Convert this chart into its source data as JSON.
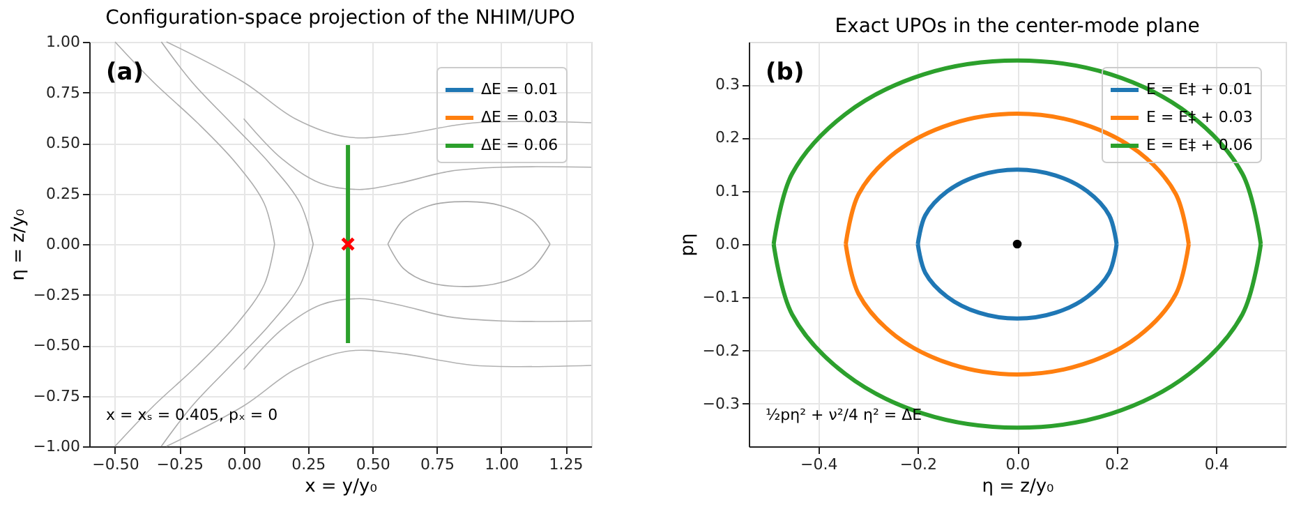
{
  "chart_data": [
    {
      "type": "line",
      "title": "Configuration-space projection of the NHIM/UPO",
      "xlabel": "x = y/y₀",
      "ylabel": "η = z/y₀",
      "xlim": [
        -0.6,
        1.35
      ],
      "xticks": [
        {
          "value": -0.5,
          "label": "−0.50"
        },
        -0.25,
        {
          "value": 0.0,
          "label": "0.00"
        },
        0.25,
        {
          "value": 0.5,
          "label": "0.50"
        },
        0.75,
        {
          "value": 1.0,
          "label": "1.00"
        },
        1.25
      ],
      "ylim": [
        -1.0,
        1.0
      ],
      "yticks": [
        {
          "value": -1.0,
          "label": "−1.00"
        },
        -0.75,
        {
          "value": -0.5,
          "label": "−0.50"
        },
        -0.25,
        {
          "value": 0.0,
          "label": "0.00"
        },
        0.25,
        {
          "value": 0.5,
          "label": "0.50"
        },
        0.75,
        {
          "value": 1.0,
          "label": "1.00"
        }
      ],
      "grid": true,
      "legend": "top right",
      "line_style": "solid",
      "annotations": [
        "(a)",
        "x = xₛ = 0.405,  pₓ = 0"
      ],
      "series": [
        {
          "color": "#a8a8a8",
          "x": [
            0.56,
            0.62,
            0.72,
            0.87,
            1.0,
            1.12,
            1.19
          ],
          "values": [
            0.0,
            0.12,
            0.19,
            0.21,
            0.19,
            0.12,
            0.0
          ]
        },
        {
          "color": "#a9a9a9",
          "x": [
            0.56,
            0.62,
            0.72,
            0.87,
            1.0,
            1.12,
            1.19
          ],
          "values": [
            0.0,
            -0.12,
            -0.19,
            -0.21,
            -0.19,
            -0.12,
            0.0
          ]
        },
        {
          "color": "#aaaaaa",
          "x": [
            0.27,
            0.22,
            0.1,
            -0.05,
            -0.2,
            -0.32
          ],
          "values": [
            0.0,
            0.2,
            0.4,
            0.6,
            0.8,
            1.0
          ]
        },
        {
          "color": "#ababab",
          "x": [
            0.27,
            0.22,
            0.1,
            -0.05,
            -0.2,
            -0.32
          ],
          "values": [
            0.0,
            -0.2,
            -0.4,
            -0.6,
            -0.8,
            -1.0
          ]
        },
        {
          "color": "#acacac",
          "x": [
            0.12,
            0.08,
            -0.03,
            -0.18,
            -0.35,
            -0.5
          ],
          "values": [
            0.0,
            0.2,
            0.4,
            0.6,
            0.8,
            1.0
          ]
        },
        {
          "color": "#adadad",
          "x": [
            0.12,
            0.08,
            -0.03,
            -0.18,
            -0.35,
            -0.5
          ],
          "values": [
            0.0,
            -0.2,
            -0.4,
            -0.6,
            -0.8,
            -1.0
          ]
        },
        {
          "color": "#aeaeae",
          "x": [
            0.0,
            0.15,
            0.3,
            0.45,
            0.6,
            0.8,
            1.0,
            1.35
          ],
          "values": [
            0.62,
            0.42,
            0.3,
            0.27,
            0.3,
            0.36,
            0.38,
            0.38
          ]
        },
        {
          "color": "#afafaf",
          "x": [
            0.0,
            0.15,
            0.3,
            0.45,
            0.6,
            0.8,
            1.0,
            1.35
          ],
          "values": [
            -0.62,
            -0.42,
            -0.3,
            -0.27,
            -0.3,
            -0.36,
            -0.38,
            -0.38
          ]
        },
        {
          "color": "#b0b0b0",
          "x": [
            -0.3,
            0.0,
            0.2,
            0.4,
            0.6,
            0.9,
            1.35
          ],
          "values": [
            1.0,
            0.8,
            0.62,
            0.53,
            0.54,
            0.6,
            0.6
          ]
        },
        {
          "color": "#b1b1b1",
          "x": [
            -0.3,
            0.0,
            0.2,
            0.4,
            0.6,
            0.9,
            1.35
          ],
          "values": [
            -1.0,
            -0.8,
            -0.62,
            -0.53,
            -0.54,
            -0.6,
            -0.6
          ]
        },
        {
          "name": "ΔE = 0.01",
          "color": "#1f77b4",
          "x": [
            null,
            null
          ],
          "values": [
            null,
            null
          ]
        },
        {
          "name": "ΔE = 0.03",
          "color": "#ff7f0e",
          "x": [
            null,
            null
          ],
          "values": [
            null,
            null
          ]
        },
        {
          "name": "ΔE = 0.06",
          "color": "#2ca02c",
          "x": [
            0.405,
            0.405
          ],
          "values": [
            -0.49,
            0.49
          ]
        },
        {
          "type": "scatter",
          "marker": "cross",
          "color": "#ff0000",
          "x": [
            0.405
          ],
          "values": [
            0.0
          ]
        }
      ]
    },
    {
      "type": "line",
      "title": "Exact UPOs in the center-mode plane",
      "xlabel": "η = z/y₀",
      "ylabel": "pη",
      "xlim": [
        -0.54,
        0.54
      ],
      "xticks": [
        -0.4,
        -0.2,
        {
          "value": 0.0,
          "label": "0.0"
        },
        0.2,
        0.4
      ],
      "ylim": [
        -0.38,
        0.38
      ],
      "yticks": [
        -0.3,
        -0.2,
        -0.1,
        {
          "value": 0.0,
          "label": "0.0"
        },
        0.1,
        0.2,
        0.3
      ],
      "grid": true,
      "legend": "top right",
      "line_style": "solid",
      "annotations": [
        "(b)",
        "½pη² + ν²/4 η² = ΔE"
      ],
      "series": [
        {
          "name": "E = E‡ + 0.01",
          "color": "#1f77b4",
          "x": [
            0.2,
            0.185,
            0.141,
            0.077,
            0.0,
            -0.077,
            -0.141,
            -0.185,
            -0.2
          ],
          "values": [
            0.0,
            0.054,
            0.099,
            0.129,
            0.14,
            0.129,
            0.099,
            0.054,
            0.0
          ]
        },
        {
          "name": "E = E‡ + 0.03",
          "color": "#ff7f0e",
          "x": [
            0.345,
            0.319,
            0.244,
            0.132,
            0.0,
            -0.132,
            -0.244,
            -0.319,
            -0.345
          ],
          "values": [
            0.0,
            0.094,
            0.173,
            0.226,
            0.245,
            0.226,
            0.173,
            0.094,
            0.0
          ]
        },
        {
          "name": "E = E‡ + 0.06",
          "color": "#2ca02c",
          "x": [
            0.49,
            0.453,
            0.346,
            0.188,
            0.0,
            -0.188,
            -0.346,
            -0.453,
            -0.49
          ],
          "values": [
            0.0,
            0.132,
            0.244,
            0.319,
            0.345,
            0.319,
            0.244,
            0.132,
            0.0
          ]
        },
        {
          "color": "#1f77b5",
          "x": [
            -0.2,
            -0.185,
            -0.141,
            -0.077,
            0.0,
            0.077,
            0.141,
            0.185,
            0.2
          ],
          "values": [
            0.0,
            -0.054,
            -0.099,
            -0.129,
            -0.14,
            -0.129,
            -0.099,
            -0.054,
            0.0
          ]
        },
        {
          "color": "#ff7f0f",
          "x": [
            -0.345,
            -0.319,
            -0.244,
            -0.132,
            0.0,
            0.132,
            0.244,
            0.319,
            0.345
          ],
          "values": [
            0.0,
            -0.094,
            -0.173,
            -0.226,
            -0.245,
            -0.226,
            -0.173,
            -0.094,
            0.0
          ]
        },
        {
          "color": "#2ca02d",
          "x": [
            -0.49,
            -0.453,
            -0.346,
            -0.188,
            0.0,
            0.188,
            0.346,
            0.453,
            0.49
          ],
          "values": [
            0.0,
            -0.132,
            -0.244,
            -0.319,
            -0.345,
            -0.319,
            -0.244,
            -0.132,
            0.0
          ]
        },
        {
          "type": "scatter",
          "marker": "circle",
          "color": "#000000",
          "x": [
            0.0
          ],
          "values": [
            0.0
          ]
        }
      ]
    }
  ]
}
